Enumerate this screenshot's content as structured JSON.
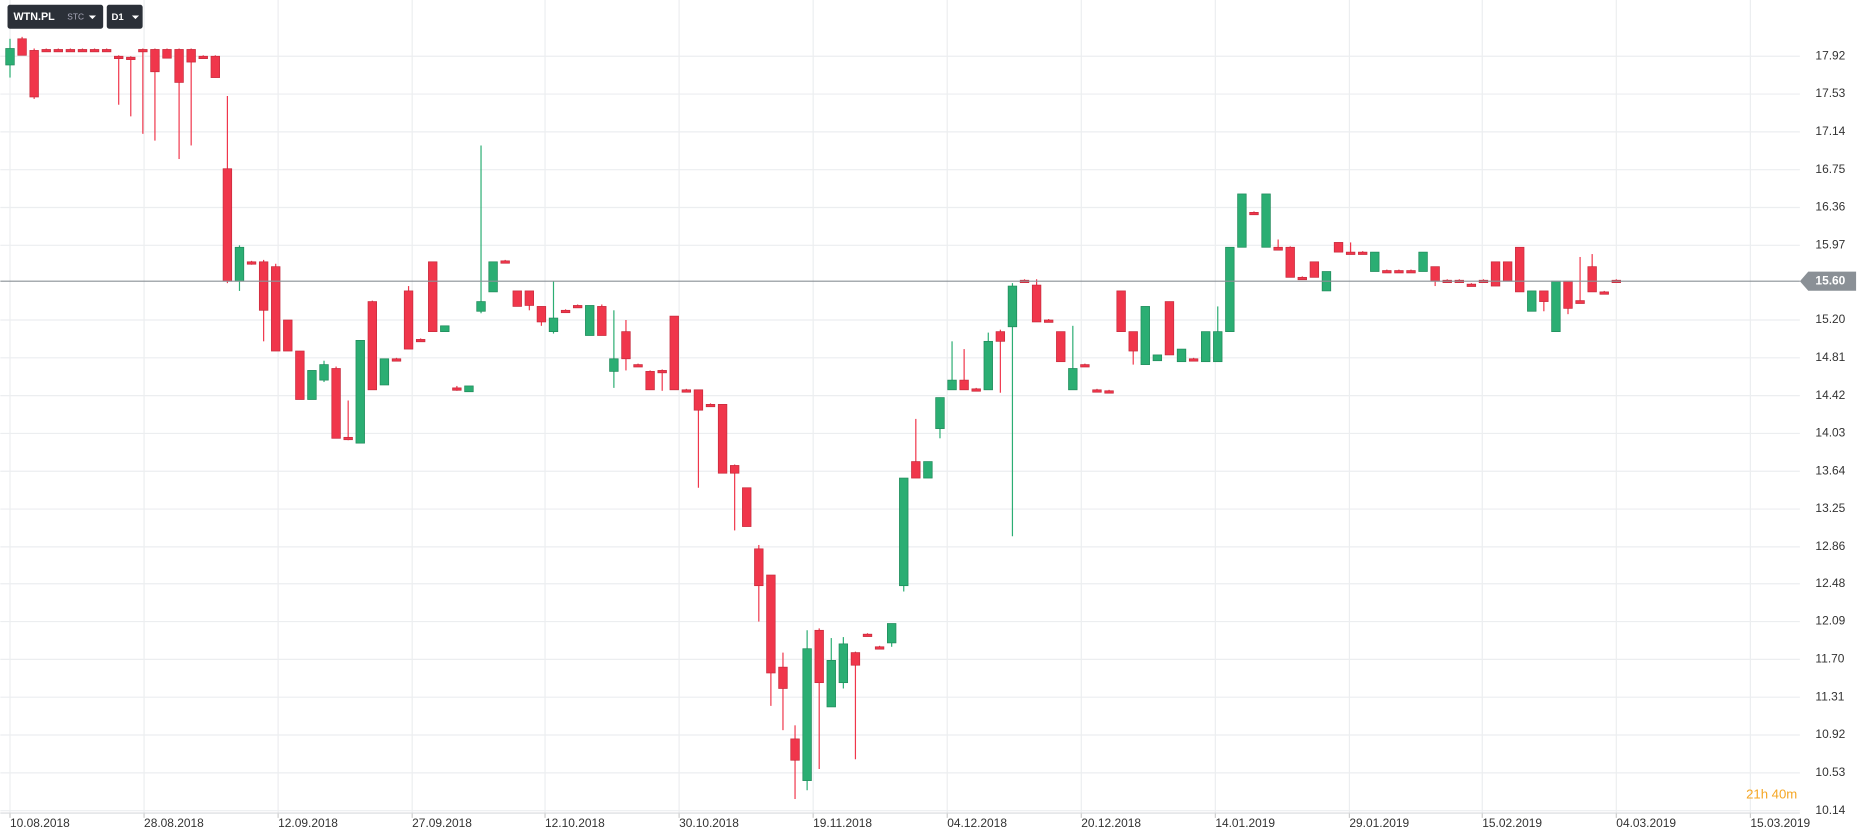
{
  "toolbar": {
    "symbol": "WTN.PL",
    "market": "STC",
    "interval": "D1"
  },
  "chart_data": {
    "type": "candlestick",
    "up_color": "#2bae73",
    "down_color": "#f0364b",
    "grid": true,
    "ylim": [
      10.115,
      18.5
    ],
    "yticks": [
      {
        "value": 10.14,
        "label": "10.14"
      },
      10.53,
      10.92,
      11.31,
      {
        "value": 11.7,
        "label": "11.70"
      },
      12.09,
      12.48,
      12.86,
      13.25,
      13.64,
      14.03,
      14.42,
      14.81,
      {
        "value": 15.2,
        "label": "15.20"
      },
      15.97,
      16.36,
      16.75,
      17.14,
      17.53,
      17.92
    ],
    "xlim": [
      -0.8,
      148.2
    ],
    "xticks": [
      {
        "value": 0,
        "label": "10.08.2018"
      },
      {
        "value": 11.1,
        "label": "28.08.2018"
      },
      {
        "value": 22.2,
        "label": "12.09.2018"
      },
      {
        "value": 33.3,
        "label": "27.09.2018"
      },
      {
        "value": 44.3,
        "label": "12.10.2018"
      },
      {
        "value": 55.4,
        "label": "30.10.2018"
      },
      {
        "value": 66.5,
        "label": "19.11.2018"
      },
      {
        "value": 77.6,
        "label": "04.12.2018"
      },
      {
        "value": 88.7,
        "label": "20.12.2018"
      },
      {
        "value": 99.8,
        "label": "14.01.2019"
      },
      {
        "value": 110.9,
        "label": "29.01.2019"
      },
      {
        "value": 121.9,
        "label": "15.02.2019"
      },
      {
        "value": 133.0,
        "label": "04.03.2019"
      },
      {
        "value": 144.1,
        "label": "15.03.2019"
      }
    ],
    "last_price": {
      "value": 15.6,
      "label": "15.60"
    },
    "countdown": "21h 40m",
    "ohlc": [
      [
        17.83,
        18.1,
        17.7,
        18.0
      ],
      [
        18.1,
        18.12,
        17.93,
        17.93
      ],
      [
        17.98,
        18.0,
        17.48,
        17.5
      ],
      [
        17.99,
        18.0,
        17.98,
        17.98
      ],
      [
        17.99,
        18.0,
        17.98,
        17.98
      ],
      [
        17.99,
        18.0,
        17.98,
        17.98
      ],
      [
        17.99,
        18.0,
        17.98,
        17.98
      ],
      [
        17.99,
        18.0,
        17.98,
        17.98
      ],
      [
        17.99,
        18.0,
        17.98,
        17.98
      ],
      [
        17.92,
        17.93,
        17.42,
        17.9
      ],
      [
        17.91,
        17.92,
        17.3,
        17.9
      ],
      [
        17.99,
        18.0,
        17.12,
        17.98
      ],
      [
        17.99,
        18.0,
        17.05,
        17.76
      ],
      [
        17.99,
        18.0,
        17.9,
        17.9
      ],
      [
        17.99,
        18.0,
        16.86,
        17.65
      ],
      [
        17.99,
        18.0,
        17.0,
        17.86
      ],
      [
        17.92,
        17.93,
        17.9,
        17.91
      ],
      [
        17.92,
        17.93,
        17.7,
        17.7
      ],
      [
        16.76,
        17.51,
        15.58,
        15.6
      ],
      [
        15.6,
        15.97,
        15.5,
        15.95
      ],
      [
        15.8,
        15.81,
        15.77,
        15.78
      ],
      [
        15.8,
        15.82,
        14.98,
        15.3
      ],
      [
        15.75,
        15.78,
        14.88,
        14.88
      ],
      [
        15.2,
        15.2,
        14.88,
        14.88
      ],
      [
        14.88,
        14.88,
        14.38,
        14.38
      ],
      [
        14.38,
        14.68,
        14.38,
        14.68
      ],
      [
        14.58,
        14.78,
        14.56,
        14.74
      ],
      [
        14.7,
        14.72,
        13.98,
        13.98
      ],
      [
        13.99,
        14.37,
        13.96,
        13.97
      ],
      [
        13.93,
        14.99,
        13.93,
        14.99
      ],
      [
        15.39,
        15.4,
        14.48,
        14.48
      ],
      [
        14.53,
        14.8,
        14.53,
        14.8
      ],
      [
        14.8,
        14.81,
        14.78,
        14.78
      ],
      [
        15.5,
        15.55,
        14.9,
        14.9
      ],
      [
        15.0,
        15.01,
        14.98,
        14.98
      ],
      [
        15.8,
        15.8,
        15.08,
        15.08
      ],
      [
        15.08,
        15.14,
        15.08,
        15.14
      ],
      [
        14.5,
        14.52,
        14.47,
        14.48
      ],
      [
        14.46,
        14.52,
        14.46,
        14.52
      ],
      [
        15.29,
        17.0,
        15.27,
        15.39
      ],
      [
        15.49,
        15.8,
        15.49,
        15.8
      ],
      [
        15.81,
        15.82,
        15.79,
        15.79
      ],
      [
        15.5,
        15.5,
        15.34,
        15.34
      ],
      [
        15.5,
        15.5,
        15.3,
        15.35
      ],
      [
        15.34,
        15.34,
        15.14,
        15.18
      ],
      [
        15.08,
        15.6,
        15.06,
        15.22
      ],
      [
        15.3,
        15.31,
        15.28,
        15.28
      ],
      [
        15.35,
        15.36,
        15.33,
        15.33
      ],
      [
        15.04,
        15.35,
        15.04,
        15.35
      ],
      [
        15.34,
        15.36,
        15.04,
        15.04
      ],
      [
        14.67,
        15.3,
        14.5,
        14.8
      ],
      [
        15.08,
        15.2,
        14.68,
        14.8
      ],
      [
        14.74,
        14.75,
        14.72,
        14.72
      ],
      [
        14.67,
        14.68,
        14.48,
        14.48
      ],
      [
        14.68,
        14.69,
        14.47,
        14.66
      ],
      [
        15.24,
        15.24,
        14.48,
        14.48
      ],
      [
        14.48,
        14.49,
        14.46,
        14.46
      ],
      [
        14.48,
        14.48,
        13.47,
        14.27
      ],
      [
        14.33,
        14.34,
        14.31,
        14.31
      ],
      [
        14.33,
        14.33,
        13.62,
        13.62
      ],
      [
        13.7,
        13.71,
        13.03,
        13.62
      ],
      [
        13.47,
        13.47,
        13.07,
        13.07
      ],
      [
        12.84,
        12.88,
        12.09,
        12.46
      ],
      [
        12.57,
        12.57,
        11.22,
        11.56
      ],
      [
        11.62,
        11.77,
        10.97,
        11.4
      ],
      [
        10.88,
        11.02,
        10.26,
        10.66
      ],
      [
        10.45,
        12.0,
        10.35,
        11.81
      ],
      [
        12.0,
        12.02,
        10.57,
        11.46
      ],
      [
        11.21,
        11.92,
        11.21,
        11.69
      ],
      [
        11.46,
        11.93,
        11.4,
        11.86
      ],
      [
        11.77,
        11.78,
        10.67,
        11.64
      ],
      [
        11.96,
        11.97,
        11.94,
        11.94
      ],
      [
        11.83,
        11.84,
        11.81,
        11.82
      ],
      [
        11.87,
        12.07,
        11.83,
        12.07
      ],
      [
        12.46,
        13.57,
        12.4,
        13.57
      ],
      [
        13.74,
        14.18,
        13.57,
        13.57
      ],
      [
        13.57,
        13.74,
        13.57,
        13.74
      ],
      [
        14.08,
        14.4,
        13.98,
        14.4
      ],
      [
        14.48,
        14.98,
        14.48,
        14.58
      ],
      [
        14.58,
        14.9,
        14.48,
        14.48
      ],
      [
        14.49,
        14.5,
        14.47,
        14.47
      ],
      [
        14.48,
        15.07,
        14.48,
        14.98
      ],
      [
        15.08,
        15.1,
        14.45,
        14.98
      ],
      [
        15.13,
        15.58,
        12.97,
        15.55
      ],
      [
        15.61,
        15.62,
        15.59,
        15.59
      ],
      [
        15.56,
        15.62,
        15.18,
        15.18
      ],
      [
        15.2,
        15.21,
        15.18,
        15.18
      ],
      [
        15.08,
        15.08,
        14.77,
        14.77
      ],
      [
        14.48,
        15.14,
        14.48,
        14.7
      ],
      [
        14.74,
        14.75,
        14.72,
        14.72
      ],
      [
        14.48,
        14.49,
        14.46,
        14.46
      ],
      [
        14.47,
        14.48,
        14.46,
        14.46
      ],
      [
        15.5,
        15.5,
        15.08,
        15.08
      ],
      [
        15.08,
        15.08,
        14.74,
        14.88
      ],
      [
        14.74,
        15.34,
        14.74,
        15.34
      ],
      [
        14.78,
        14.84,
        14.78,
        14.84
      ],
      [
        15.39,
        15.39,
        14.84,
        14.84
      ],
      [
        14.77,
        14.9,
        14.77,
        14.9
      ],
      [
        14.8,
        14.81,
        14.78,
        14.78
      ],
      [
        14.77,
        15.08,
        14.77,
        15.08
      ],
      [
        14.77,
        15.34,
        14.77,
        15.08
      ],
      [
        15.08,
        15.95,
        15.08,
        15.95
      ],
      [
        15.95,
        16.5,
        15.95,
        16.5
      ],
      [
        16.31,
        16.32,
        16.29,
        16.29
      ],
      [
        15.95,
        16.5,
        15.95,
        16.5
      ],
      [
        15.95,
        16.03,
        15.92,
        15.92
      ],
      [
        15.95,
        15.96,
        15.64,
        15.64
      ],
      [
        15.64,
        15.65,
        15.62,
        15.62
      ],
      [
        15.8,
        15.8,
        15.64,
        15.64
      ],
      [
        15.5,
        15.7,
        15.5,
        15.7
      ],
      [
        16.0,
        16.0,
        15.9,
        15.9
      ],
      [
        15.9,
        16.0,
        15.88,
        15.88
      ],
      [
        15.9,
        15.91,
        15.88,
        15.88
      ],
      [
        15.7,
        15.9,
        15.7,
        15.9
      ],
      [
        15.71,
        15.72,
        15.69,
        15.69
      ],
      [
        15.71,
        15.72,
        15.69,
        15.69
      ],
      [
        15.71,
        15.72,
        15.69,
        15.69
      ],
      [
        15.7,
        15.9,
        15.7,
        15.9
      ],
      [
        15.75,
        15.75,
        15.55,
        15.6
      ],
      [
        15.61,
        15.62,
        15.59,
        15.59
      ],
      [
        15.61,
        15.62,
        15.59,
        15.59
      ],
      [
        15.57,
        15.58,
        15.55,
        15.55
      ],
      [
        15.61,
        15.62,
        15.59,
        15.59
      ],
      [
        15.8,
        15.8,
        15.55,
        15.55
      ],
      [
        15.8,
        15.8,
        15.6,
        15.6
      ],
      [
        15.95,
        15.95,
        15.49,
        15.49
      ],
      [
        15.29,
        15.5,
        15.29,
        15.5
      ],
      [
        15.5,
        15.5,
        15.29,
        15.39
      ],
      [
        15.08,
        15.6,
        15.08,
        15.6
      ],
      [
        15.6,
        15.6,
        15.26,
        15.32
      ],
      [
        15.4,
        15.85,
        15.37,
        15.37
      ],
      [
        15.75,
        15.88,
        15.49,
        15.49
      ],
      [
        15.49,
        15.5,
        15.47,
        15.47
      ],
      [
        15.61,
        15.62,
        15.59,
        15.59
      ]
    ]
  }
}
